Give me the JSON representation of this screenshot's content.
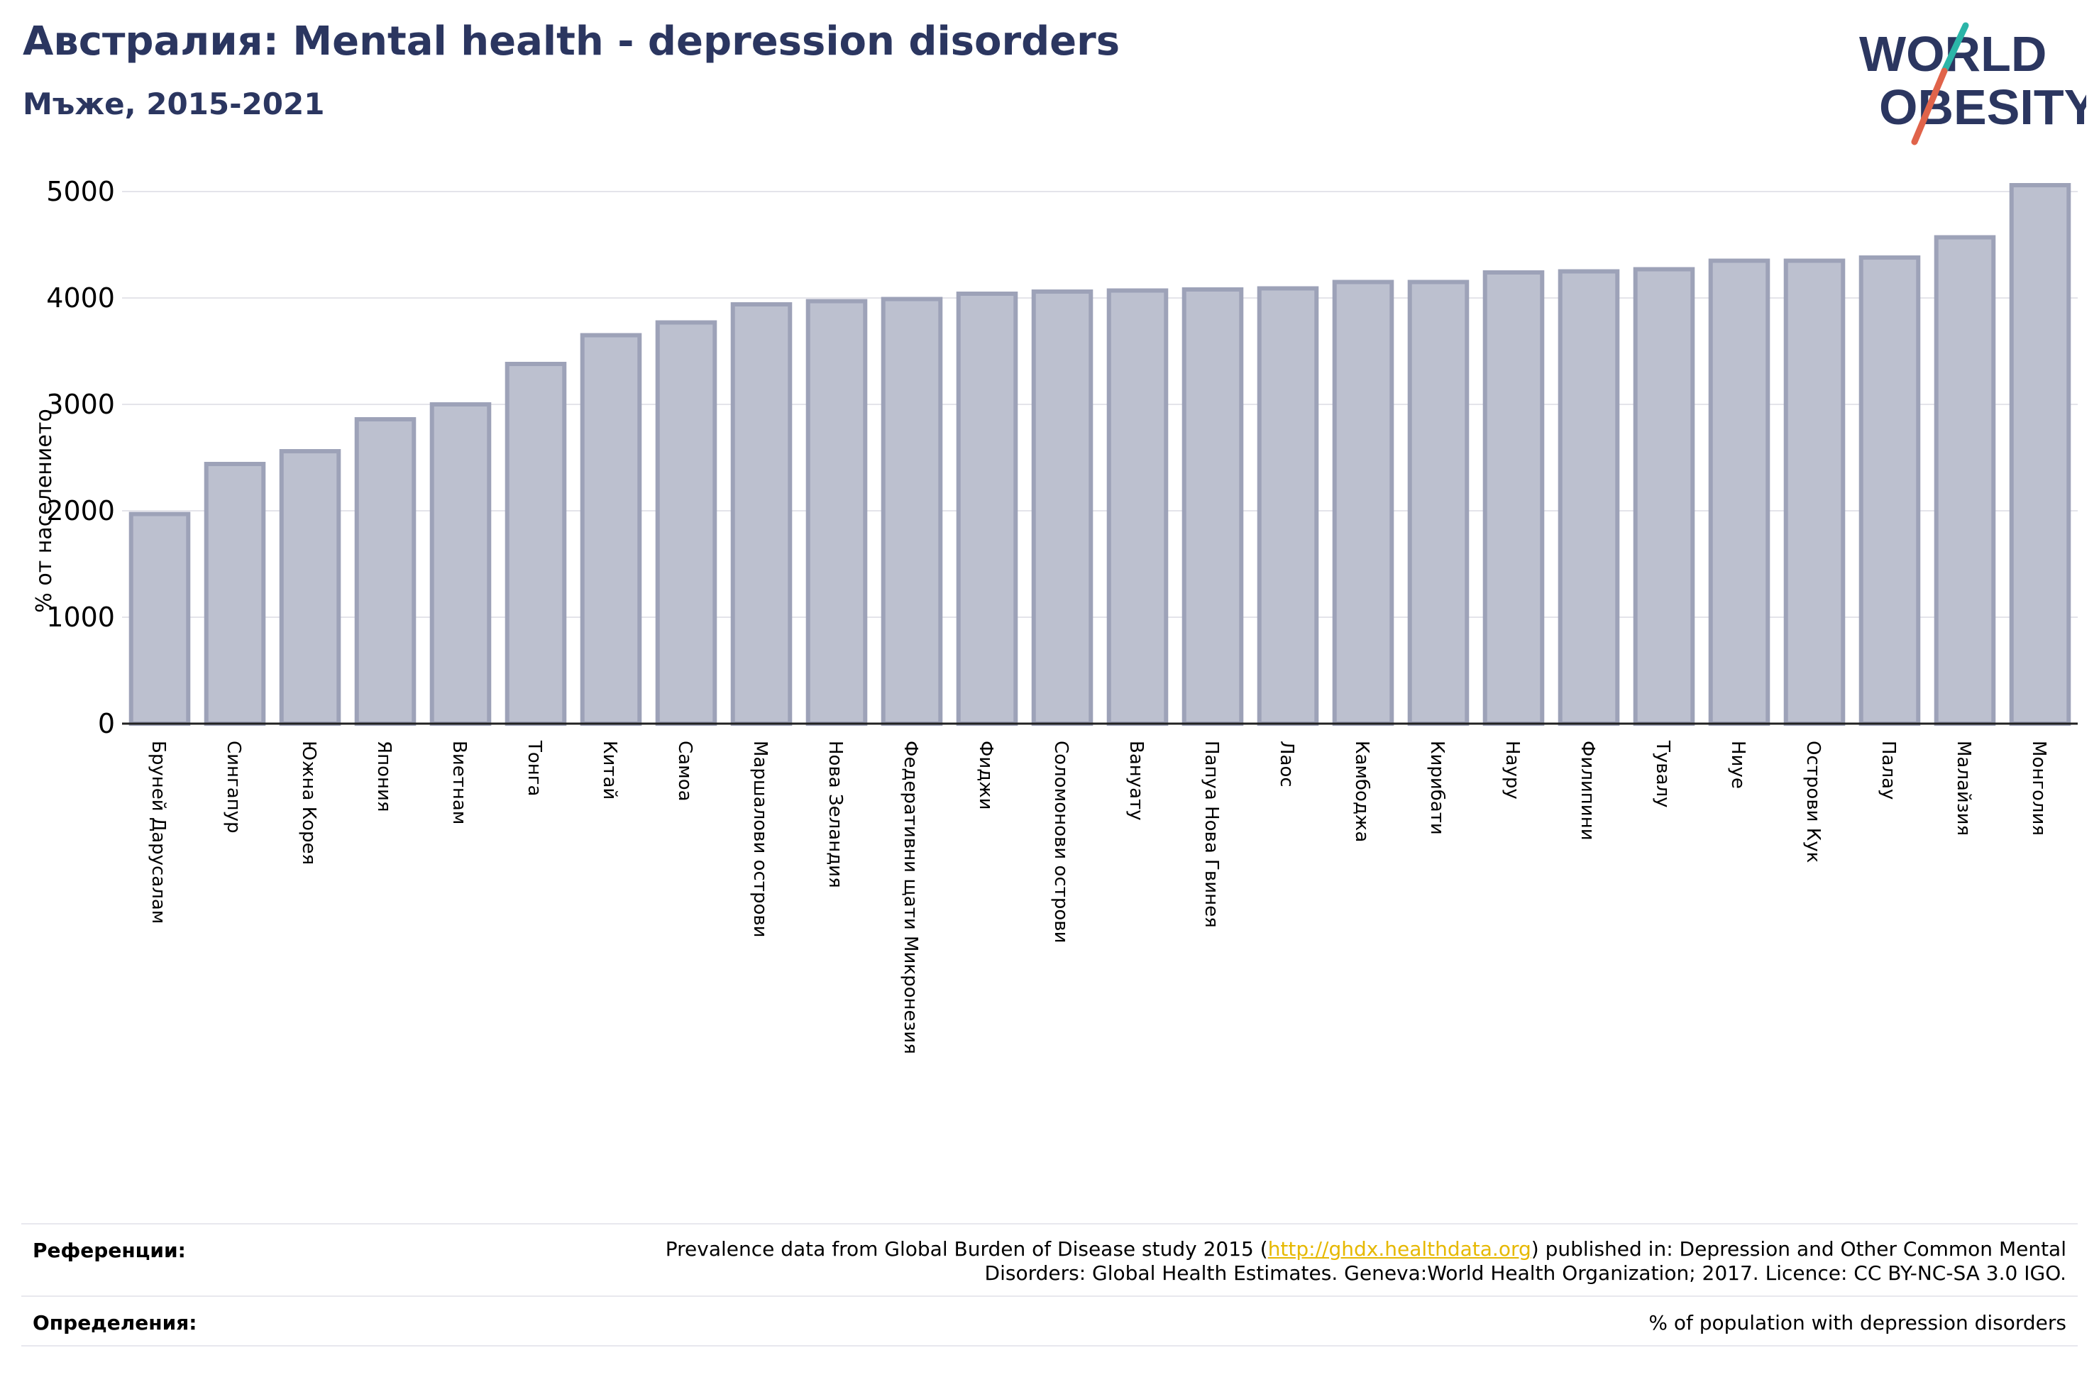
{
  "header": {
    "title": "Австралия: Mental health - depression disorders",
    "subtitle": "Мъже, 2015-2021"
  },
  "logo": {
    "line1": "WORLD",
    "line2": "OBESITY",
    "colors": {
      "text": "#2b3660",
      "slash_red": "#e0634a",
      "slash_teal": "#2bb5a8"
    }
  },
  "chart_data": {
    "type": "bar",
    "title": "",
    "xlabel": "",
    "ylabel": "% от населението",
    "ylim": [
      0,
      5200
    ],
    "yticks": [
      0,
      1000,
      2000,
      3000,
      4000,
      5000
    ],
    "grid": true,
    "bar_color": "#bcc0cf",
    "bar_edge_color": "#9da2b8",
    "categories": [
      "Бруней Дарусалам",
      "Сингапур",
      "Южна Корея",
      "Япония",
      "Виетнам",
      "Тонга",
      "Китай",
      "Самоа",
      "Маршалови острови",
      "Нова Зеландия",
      "Федеративни щати Микронезия",
      "Фиджи",
      "Соломонови острови",
      "Вануату",
      "Папуа Нова Гвинея",
      "Лаос",
      "Камбоджа",
      "Кирибати",
      "Науру",
      "Филипини",
      "Тувалу",
      "Ниуе",
      "Острови Кук",
      "Палау",
      "Малайзия",
      "Монголия"
    ],
    "values": [
      1970,
      2440,
      2560,
      2860,
      3000,
      3380,
      3650,
      3770,
      3940,
      3970,
      3990,
      4040,
      4060,
      4070,
      4080,
      4090,
      4150,
      4150,
      4240,
      4250,
      4270,
      4350,
      4350,
      4380,
      4570,
      5060
    ]
  },
  "footer": {
    "references_label": "Референции:",
    "references_pre": "Prevalence data from Global Burden of Disease study 2015 (",
    "references_link": "http://ghdx.healthdata.org",
    "references_post": ") published in: Depression and Other Common Mental",
    "references_line2": "Disorders: Global Health Estimates. Geneva:World Health Organization; 2017. Licence: CC BY-NC-SA 3.0 IGO.",
    "definitions_label": "Определения:",
    "definitions_text": "% of population with depression disorders"
  }
}
